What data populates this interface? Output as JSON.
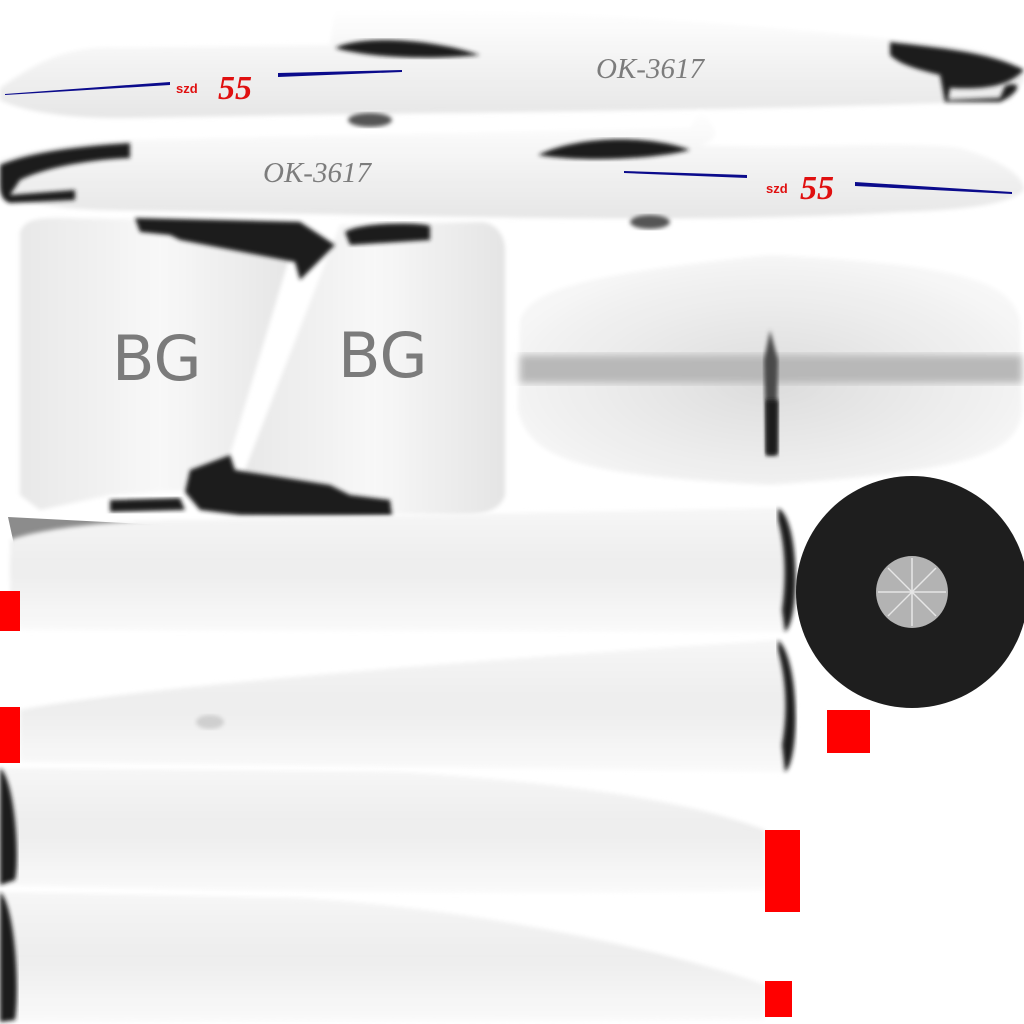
{
  "texture": {
    "upper_fuselage_left": {
      "registration": "OK-3617",
      "szd": "szd",
      "number": "55"
    },
    "upper_fuselage_right": {
      "registration": "OK-3617",
      "szd": "szd",
      "number": "55"
    },
    "fin_left": {
      "marking": "BG"
    },
    "fin_right": {
      "marking": "BG"
    }
  },
  "colors": {
    "background": "#ffffff",
    "body_white": "#f2f2f2",
    "trim_black": "#1e1e1e",
    "stripe_blue": "#0b0b8c",
    "accent_red": "#ff0000",
    "text_grey": "#7c7c7c",
    "hub_grey": "#bdbdbd"
  }
}
